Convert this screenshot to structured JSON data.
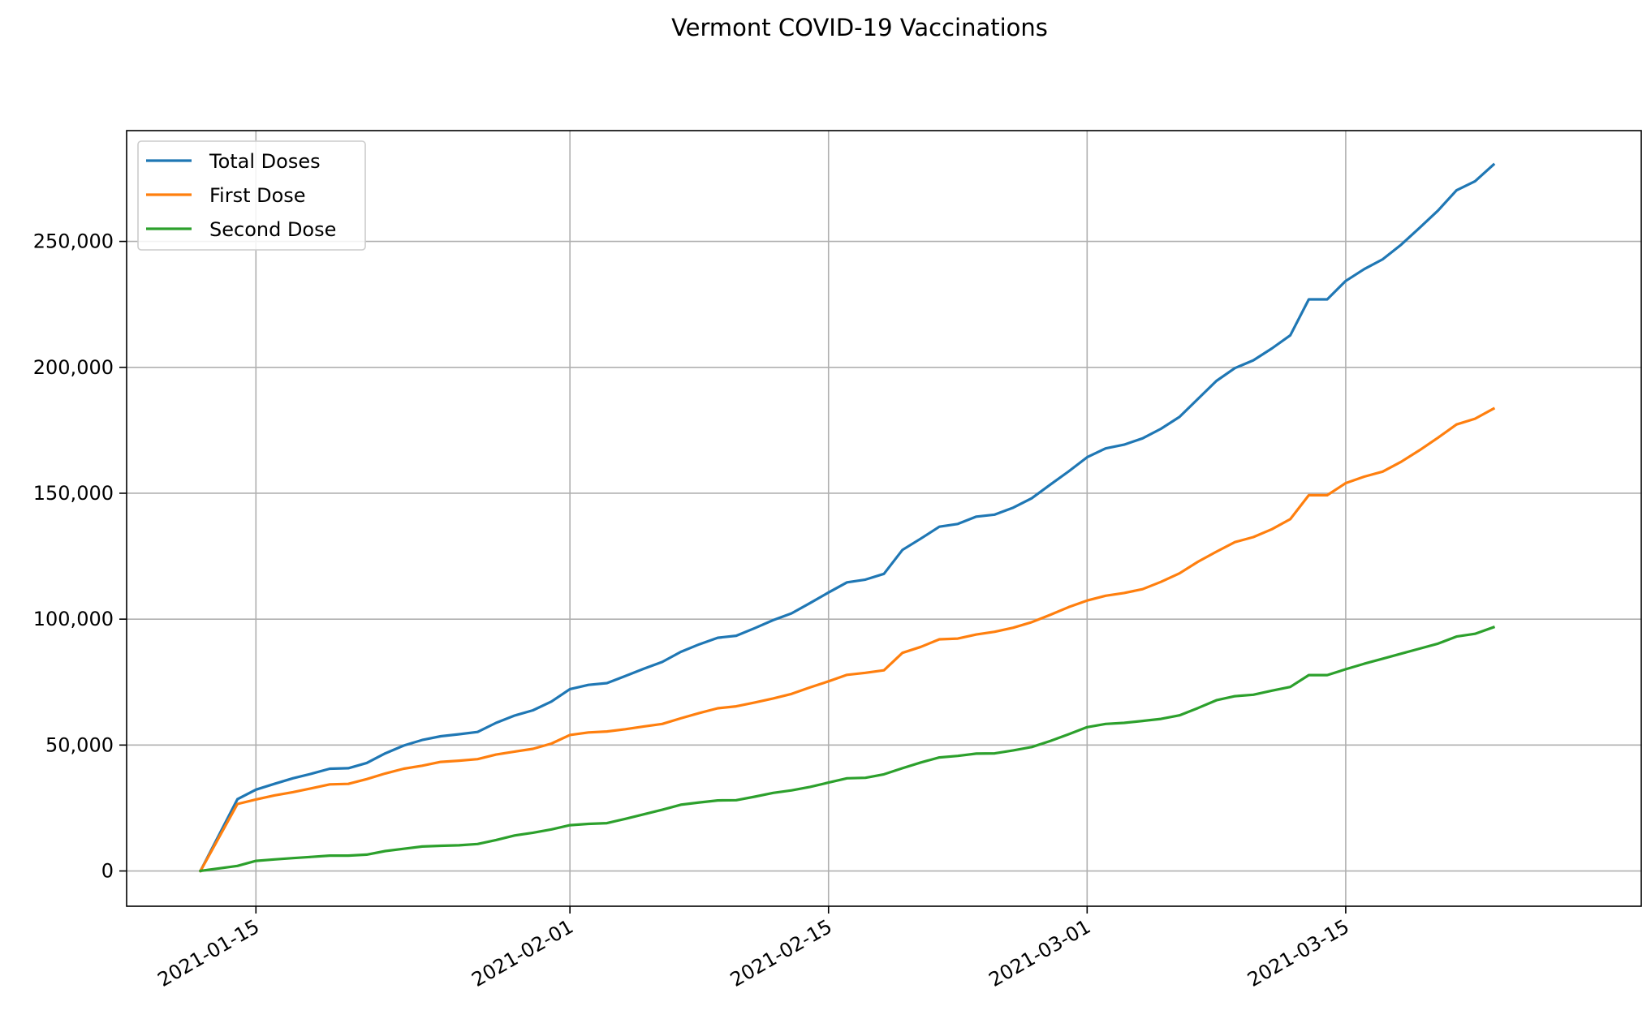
{
  "chart_data": {
    "type": "line",
    "title": "Vermont COVID-19 Vaccinations",
    "xlabel": "",
    "ylabel": "",
    "grid": true,
    "legend_position": "top-left",
    "x_type": "date",
    "xlim": [
      "2021-01-08",
      "2021-03-31"
    ],
    "ylim": [
      -14000,
      294000
    ],
    "x_ticks": [
      "2021-01-15",
      "2021-02-01",
      "2021-02-15",
      "2021-03-01",
      "2021-03-15"
    ],
    "y_ticks": [
      0,
      50000,
      100000,
      150000,
      200000,
      250000
    ],
    "y_tick_labels": [
      "0",
      "50,000",
      "100,000",
      "150,000",
      "200,000",
      "250,000"
    ],
    "x": [
      "2021-01-12",
      "2021-01-14",
      "2021-01-15",
      "2021-01-16",
      "2021-01-17",
      "2021-01-18",
      "2021-01-19",
      "2021-01-20",
      "2021-01-21",
      "2021-01-22",
      "2021-01-23",
      "2021-01-24",
      "2021-01-25",
      "2021-01-26",
      "2021-01-27",
      "2021-01-28",
      "2021-01-29",
      "2021-01-30",
      "2021-01-31",
      "2021-02-01",
      "2021-02-02",
      "2021-02-03",
      "2021-02-04",
      "2021-02-05",
      "2021-02-06",
      "2021-02-07",
      "2021-02-08",
      "2021-02-09",
      "2021-02-10",
      "2021-02-11",
      "2021-02-12",
      "2021-02-13",
      "2021-02-14",
      "2021-02-15",
      "2021-02-16",
      "2021-02-17",
      "2021-02-18",
      "2021-02-19",
      "2021-02-20",
      "2021-02-21",
      "2021-02-22",
      "2021-02-23",
      "2021-02-24",
      "2021-02-25",
      "2021-02-26",
      "2021-02-27",
      "2021-02-28",
      "2021-03-01",
      "2021-03-02",
      "2021-03-03",
      "2021-03-04",
      "2021-03-05",
      "2021-03-06",
      "2021-03-07",
      "2021-03-08",
      "2021-03-09",
      "2021-03-10",
      "2021-03-11",
      "2021-03-12",
      "2021-03-13",
      "2021-03-14",
      "2021-03-15",
      "2021-03-16",
      "2021-03-17",
      "2021-03-18",
      "2021-03-19",
      "2021-03-20",
      "2021-03-21",
      "2021-03-22",
      "2021-03-23"
    ],
    "series": [
      {
        "name": "Total Doses",
        "color": "#1f77b4",
        "values": [
          0,
          28500,
          32300,
          34600,
          36800,
          38600,
          40600,
          40800,
          42900,
          46700,
          49800,
          52000,
          53500,
          54300,
          55200,
          58800,
          61700,
          63800,
          67300,
          72200,
          73900,
          74600,
          77400,
          80300,
          83000,
          87000,
          90000,
          92600,
          93400,
          96400,
          99600,
          102300,
          106400,
          110600,
          114600,
          115700,
          118000,
          127500,
          132000,
          136700,
          137800,
          140700,
          141500,
          144300,
          148000,
          153400,
          158700,
          164300,
          167800,
          169300,
          171800,
          175600,
          180300,
          187500,
          194600,
          199700,
          202800,
          207500,
          212700,
          227000,
          227000,
          234300,
          239000,
          242900,
          248700,
          255400,
          262300,
          270300,
          273900,
          280500
        ]
      },
      {
        "name": "First Dose",
        "color": "#ff7f0e",
        "values": [
          0,
          26600,
          28400,
          30000,
          31300,
          32800,
          34400,
          34600,
          36500,
          38700,
          40600,
          41800,
          43300,
          43800,
          44400,
          46200,
          47400,
          48500,
          50600,
          54000,
          55000,
          55400,
          56300,
          57400,
          58400,
          60600,
          62700,
          64600,
          65400,
          66900,
          68500,
          70300,
          72900,
          75300,
          77900,
          78700,
          79700,
          86600,
          89000,
          92000,
          92300,
          93900,
          95000,
          96600,
          98800,
          101700,
          104800,
          107400,
          109300,
          110400,
          111900,
          114800,
          118200,
          122800,
          126800,
          130600,
          132600,
          135700,
          139700,
          149200,
          149200,
          154000,
          156600,
          158600,
          162500,
          167100,
          172100,
          177300,
          179600,
          183600
        ]
      },
      {
        "name": "Second Dose",
        "color": "#2ca02c",
        "values": [
          0,
          2000,
          4000,
          4600,
          5100,
          5600,
          6100,
          6100,
          6500,
          7900,
          8800,
          9700,
          10000,
          10200,
          10700,
          12300,
          14100,
          15200,
          16500,
          18200,
          18700,
          19000,
          20700,
          22500,
          24300,
          26300,
          27200,
          28000,
          28100,
          29500,
          31000,
          32000,
          33400,
          35100,
          36800,
          37000,
          38400,
          40800,
          43100,
          45100,
          45700,
          46600,
          46700,
          47900,
          49200,
          51600,
          54300,
          57100,
          58400,
          58800,
          59600,
          60400,
          61800,
          64700,
          67800,
          69400,
          70000,
          71600,
          73100,
          77800,
          77800,
          80100,
          82300,
          84300,
          86300,
          88300,
          90300,
          93100,
          94200,
          96800
        ]
      }
    ]
  }
}
